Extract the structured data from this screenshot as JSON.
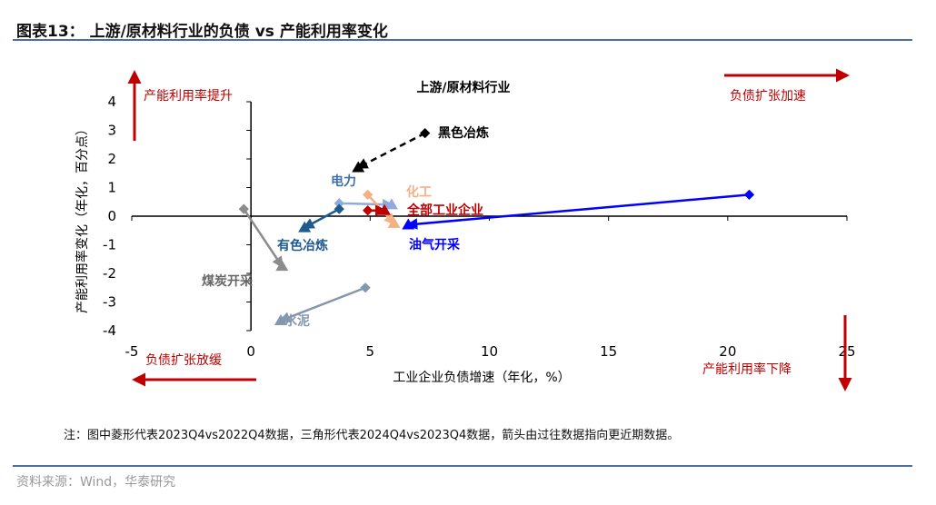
{
  "header": {
    "title": "图表13： 上游/原材料行业的负债 vs 产能利用率变化"
  },
  "chart_data": {
    "type": "scatter",
    "title": "上游/原材料行业",
    "xlabel": "工业企业负债增速（年化，%）",
    "ylabel": "产能利用率变化（年化，百分点）",
    "xlim": [
      -5,
      25
    ],
    "ylim": [
      -4,
      4
    ],
    "xticks": [
      "-5",
      "0",
      "5",
      "10",
      "15",
      "20",
      "25"
    ],
    "yticks": [
      "4",
      "3",
      "2",
      "1",
      "0",
      "-1",
      "-2",
      "-3",
      "-4"
    ],
    "grid": false,
    "annotations": {
      "up": "产能利用率提升",
      "right": "负债扩张加速",
      "left": "负债扩张放缓",
      "down": "产能利用率下降"
    },
    "annotation_color": "#c00000",
    "series": [
      {
        "name": "黑色冶炼",
        "color": "#000000",
        "dashed": true,
        "from": [
          7.3,
          2.9
        ],
        "to": [
          4.5,
          1.7
        ]
      },
      {
        "name": "电力",
        "color": "#8faadc",
        "label_color": "#3f6fa9",
        "from": [
          3.7,
          0.45
        ],
        "to": [
          5.9,
          0.4
        ]
      },
      {
        "name": "化工",
        "color": "#f4b183",
        "from": [
          4.9,
          0.75
        ],
        "to": [
          6.0,
          -0.25
        ]
      },
      {
        "name": "全部工业企业",
        "color": "#c00000",
        "from": [
          4.9,
          0.2
        ],
        "to": [
          5.6,
          0.2
        ]
      },
      {
        "name": "油气开采",
        "color": "#0000ff",
        "from": [
          20.9,
          0.75
        ],
        "to": [
          6.6,
          -0.3
        ]
      },
      {
        "name": "有色冶炼",
        "color": "#1f5a8f",
        "from": [
          3.7,
          0.25
        ],
        "to": [
          2.25,
          -0.4
        ]
      },
      {
        "name": "煤炭开采",
        "color": "#8c8c8c",
        "label_color": "#666666",
        "from": [
          -0.3,
          0.25
        ],
        "to": [
          1.3,
          -1.75
        ]
      },
      {
        "name": "水泥",
        "color": "#8497b0",
        "from": [
          4.8,
          -2.5
        ],
        "to": [
          1.25,
          -3.65
        ]
      }
    ]
  },
  "footer": {
    "note": "注：图中菱形代表2023Q4vs2022Q4数据，三角形代表2024Q4vs2023Q4数据，箭头由过往数据指向更近期数据。",
    "source": "资料来源：Wind，华泰研究"
  }
}
